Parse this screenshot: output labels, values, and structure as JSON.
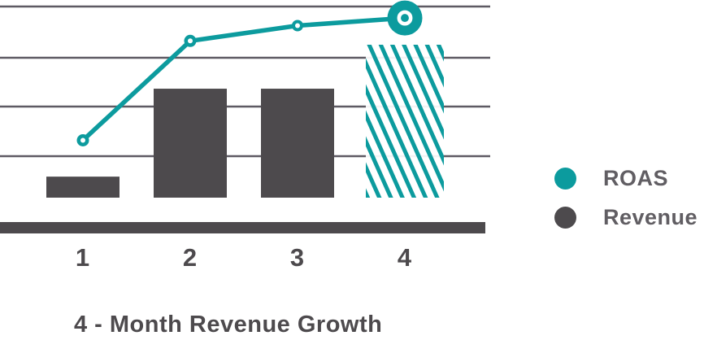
{
  "title": "4 - Month Revenue Growth",
  "legend": {
    "items": [
      {
        "label": "ROAS",
        "color": "#0c9b9e",
        "series": "roas"
      },
      {
        "label": "Revenue",
        "color": "#4d4a4d",
        "series": "revenue"
      }
    ]
  },
  "colors": {
    "teal": "#0c9b9e",
    "bar_gray": "#4d4a4d",
    "grid_gray": "#5e5a63",
    "axis_bar": "#4d4a4d",
    "title_text": "#4d4a4d",
    "legend_text": "#615e63",
    "hatch_background": "#ffffff"
  },
  "chart_data": {
    "type": "bar",
    "subtype": "combo-bar-line",
    "title": "4 - Month Revenue Growth",
    "categories": [
      "1",
      "2",
      "3",
      "4"
    ],
    "series": [
      {
        "name": "Revenue",
        "type": "bar",
        "color": "#4d4a4d",
        "values": [
          11,
          57,
          57,
          80
        ],
        "style_note": "month-4 bar is drawn as teal diagonal hatching on white instead of solid gray"
      },
      {
        "name": "ROAS",
        "type": "line",
        "color": "#0c9b9e",
        "values": [
          30,
          82,
          90,
          94
        ],
        "marker": "ring",
        "style_note": "final point emphasized with an oversized ring marker"
      }
    ],
    "xlabel": "",
    "ylabel": "",
    "value_axis": {
      "labels_visible": false,
      "units": "percent of plot height (no numeric scale shown in image)",
      "ylim": [
        0,
        100
      ],
      "gridline_count": 4
    },
    "legend_position": "right",
    "grid": "horizontal"
  }
}
